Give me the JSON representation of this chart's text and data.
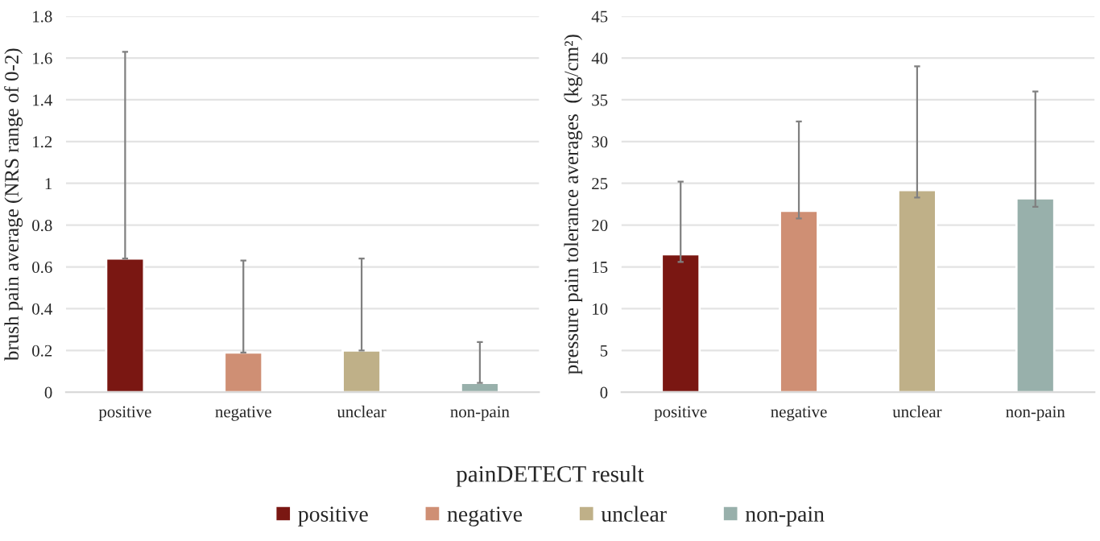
{
  "chart_data": [
    {
      "type": "bar",
      "ylabel": "brush pain average (NRS range of 0-2)",
      "xlabel": "painDETECT result",
      "categories": [
        "positive",
        "negative",
        "unclear",
        "non-pain"
      ],
      "series": [
        {
          "name": "positive",
          "color": "#7a1712",
          "values": [
            0.64,
            null,
            null,
            null
          ],
          "errors": [
            [
              0.64,
              1.63
            ],
            null,
            null,
            null
          ]
        },
        {
          "name": "negative",
          "color": "#cf8f74",
          "values": [
            null,
            0.19,
            null,
            null
          ],
          "errors": [
            null,
            [
              0.19,
              0.63
            ],
            null,
            null
          ]
        },
        {
          "name": "unclear",
          "color": "#bfb088",
          "values": [
            null,
            null,
            0.2,
            null
          ],
          "errors": [
            null,
            null,
            [
              0.2,
              0.64
            ],
            null
          ]
        },
        {
          "name": "non-pain",
          "color": "#98b0ab",
          "values": [
            null,
            null,
            null,
            0.045
          ],
          "errors": [
            null,
            null,
            null,
            [
              0.045,
              0.24
            ]
          ]
        }
      ],
      "ylim": [
        0,
        1.8
      ],
      "yticks": [
        0,
        0.2,
        0.4,
        0.6,
        0.8,
        1,
        1.2,
        1.4,
        1.6,
        1.8
      ],
      "grid": "y",
      "legend": "bottom"
    },
    {
      "type": "bar",
      "ylabel": "pressure pain tolerance averages  (kg/cm²)",
      "categories": [
        "positive",
        "negative",
        "unclear",
        "non-pain"
      ],
      "series": [
        {
          "color": "#7a1712",
          "values": [
            16.5,
            null,
            null,
            null
          ],
          "errors": [
            [
              15.6,
              25.2
            ],
            null,
            null,
            null
          ]
        },
        {
          "color": "#cf8f74",
          "values": [
            null,
            21.7,
            null,
            null
          ],
          "errors": [
            null,
            [
              20.8,
              32.4
            ],
            null,
            null
          ]
        },
        {
          "color": "#bfb088",
          "values": [
            null,
            null,
            24.2,
            null
          ],
          "errors": [
            null,
            null,
            [
              23.3,
              39
            ],
            null
          ]
        },
        {
          "color": "#98b0ab",
          "values": [
            null,
            null,
            null,
            23.2
          ],
          "errors": [
            null,
            null,
            null,
            [
              22.2,
              36
            ]
          ]
        }
      ],
      "ylim": [
        0,
        45
      ],
      "yticks": [
        0,
        5,
        10,
        15,
        20,
        25,
        30,
        35,
        40,
        45
      ],
      "grid": "y"
    }
  ]
}
